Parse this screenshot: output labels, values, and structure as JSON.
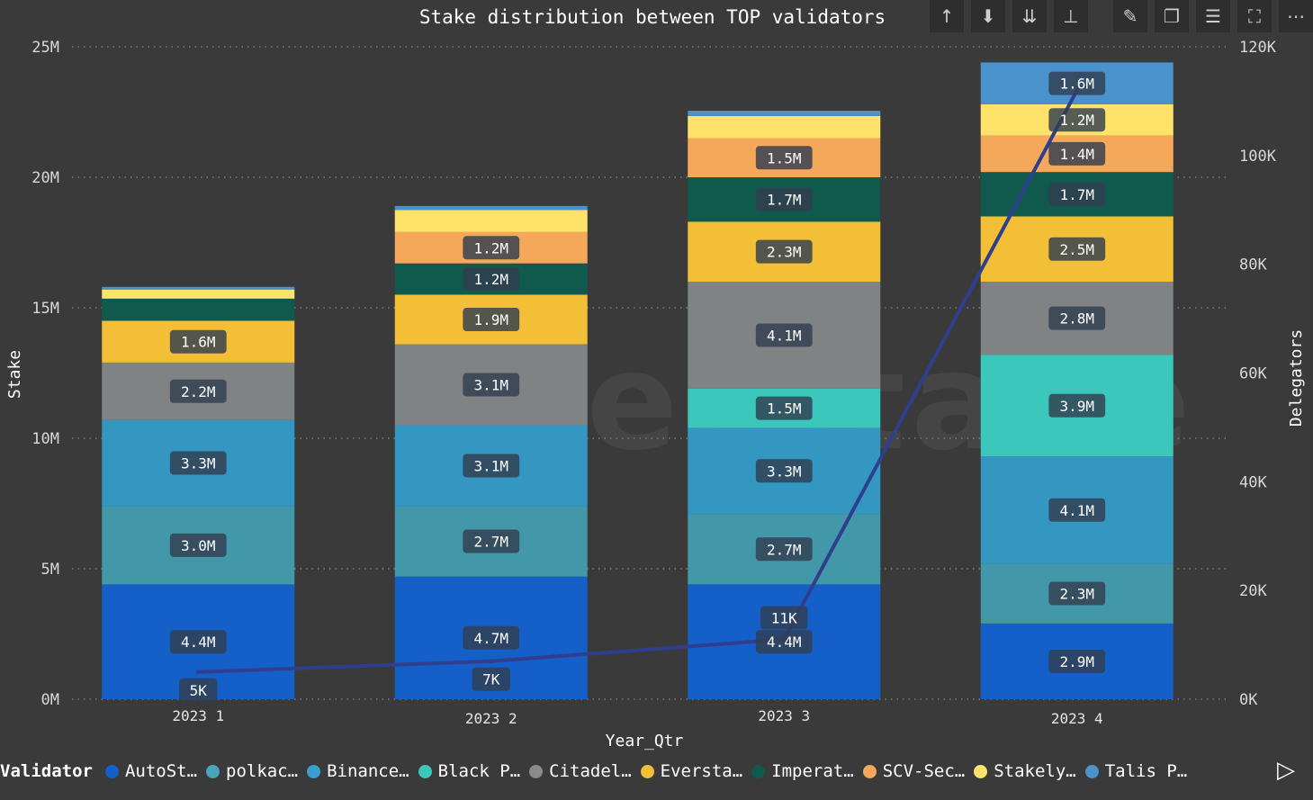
{
  "toolbar": {
    "icons": [
      "arrow-up-icon",
      "drill-down-icon",
      "expand-all-down-icon",
      "hierarchy-icon",
      "pin-icon",
      "copy-icon",
      "filter-icon",
      "focus-mode-icon",
      "more-options-icon"
    ],
    "glyphs": [
      "↑",
      "⬇",
      "⇊",
      "⊥",
      "✎",
      "❐",
      "☰",
      "⛶",
      "⋯"
    ]
  },
  "watermark": "everstake",
  "legend": {
    "title": "Validator",
    "items": [
      {
        "label": "AutoSt…",
        "color": "#1560c8"
      },
      {
        "label": "polkac…",
        "color": "#4aa3b8"
      },
      {
        "label": "Binance…",
        "color": "#3a9fd0"
      },
      {
        "label": "Black P…",
        "color": "#3cc7bd"
      },
      {
        "label": "Citadel…",
        "color": "#8a8a8a"
      },
      {
        "label": "Eversta…",
        "color": "#f2bf36"
      },
      {
        "label": "Imperat…",
        "color": "#0f5a4c"
      },
      {
        "label": "SCV-Sec…",
        "color": "#f5a85a"
      },
      {
        "label": "Stakely…",
        "color": "#ffe26a"
      },
      {
        "label": "Talis P…",
        "color": "#4a92cc"
      }
    ],
    "next_glyph": "▷"
  },
  "chart_data": {
    "type": "bar",
    "stacked": true,
    "title": "Stake distribution between TOP validators",
    "xlabel": "Year_Qtr",
    "ylabel": "Stake",
    "y2label": "Delegators",
    "categories": [
      "2023 1",
      "2023 2",
      "2023 3",
      "2023 4"
    ],
    "ylim": [
      0,
      25000000
    ],
    "y2lim": [
      0,
      120000
    ],
    "yticks": [
      {
        "value": 0,
        "label": "0M"
      },
      {
        "value": 5000000,
        "label": "5M"
      },
      {
        "value": 10000000,
        "label": "10M"
      },
      {
        "value": 15000000,
        "label": "15M"
      },
      {
        "value": 20000000,
        "label": "20M"
      },
      {
        "value": 25000000,
        "label": "25M"
      }
    ],
    "y2ticks": [
      {
        "value": 0,
        "label": "0K"
      },
      {
        "value": 20000,
        "label": "20K"
      },
      {
        "value": 40000,
        "label": "40K"
      },
      {
        "value": 60000,
        "label": "60K"
      },
      {
        "value": 80000,
        "label": "80K"
      },
      {
        "value": 100000,
        "label": "100K"
      },
      {
        "value": 120000,
        "label": "120K"
      }
    ],
    "series": [
      {
        "name": "AutoSt…",
        "color": "#1560c8",
        "values": [
          4400000,
          4700000,
          4400000,
          2900000
        ],
        "labels": [
          "4.4M",
          "4.7M",
          "4.4M",
          "2.9M"
        ]
      },
      {
        "name": "polkac…",
        "color": "#4297a8",
        "values": [
          3000000,
          2700000,
          2700000,
          2300000
        ],
        "labels": [
          "3.0M",
          "2.7M",
          "2.7M",
          "2.3M"
        ]
      },
      {
        "name": "Binance…",
        "color": "#3497c2",
        "values": [
          3300000,
          3100000,
          3300000,
          4100000
        ],
        "labels": [
          "3.3M",
          "3.1M",
          "3.3M",
          "4.1M"
        ]
      },
      {
        "name": "Black P…",
        "color": "#3cc7bd",
        "values": [
          0,
          0,
          1500000,
          3900000
        ],
        "labels": [
          "",
          "",
          "1.5M",
          "3.9M"
        ]
      },
      {
        "name": "Citadel…",
        "color": "#808384",
        "values": [
          2200000,
          3100000,
          4100000,
          2800000
        ],
        "labels": [
          "2.2M",
          "3.1M",
          "4.1M",
          "2.8M"
        ]
      },
      {
        "name": "Eversta…",
        "color": "#f2bf36",
        "values": [
          1600000,
          1900000,
          2300000,
          2500000
        ],
        "labels": [
          "1.6M",
          "1.9M",
          "2.3M",
          "2.5M"
        ]
      },
      {
        "name": "Imperat…",
        "color": "#0f5a4c",
        "values": [
          850000,
          1200000,
          1700000,
          1700000
        ],
        "labels": [
          "",
          "1.2M",
          "1.7M",
          "1.7M"
        ]
      },
      {
        "name": "SCV-Sec…",
        "color": "#f5a85a",
        "values": [
          0,
          1200000,
          1500000,
          1400000
        ],
        "labels": [
          "",
          "1.2M",
          "1.5M",
          "1.4M"
        ]
      },
      {
        "name": "Stakely…",
        "color": "#ffe26a",
        "values": [
          350000,
          850000,
          850000,
          1200000
        ],
        "labels": [
          "",
          "",
          "",
          "1.2M"
        ]
      },
      {
        "name": "Talis P…",
        "color": "#4a92cc",
        "values": [
          100000,
          150000,
          200000,
          1600000
        ],
        "labels": [
          "",
          "",
          "",
          "1.6M"
        ]
      }
    ],
    "line": {
      "name": "Delegators",
      "color": "#2f3f8f",
      "values": [
        5000,
        7000,
        11000,
        112000
      ],
      "labels": [
        "5K",
        "7K",
        "11K",
        ""
      ]
    },
    "grid": true
  }
}
